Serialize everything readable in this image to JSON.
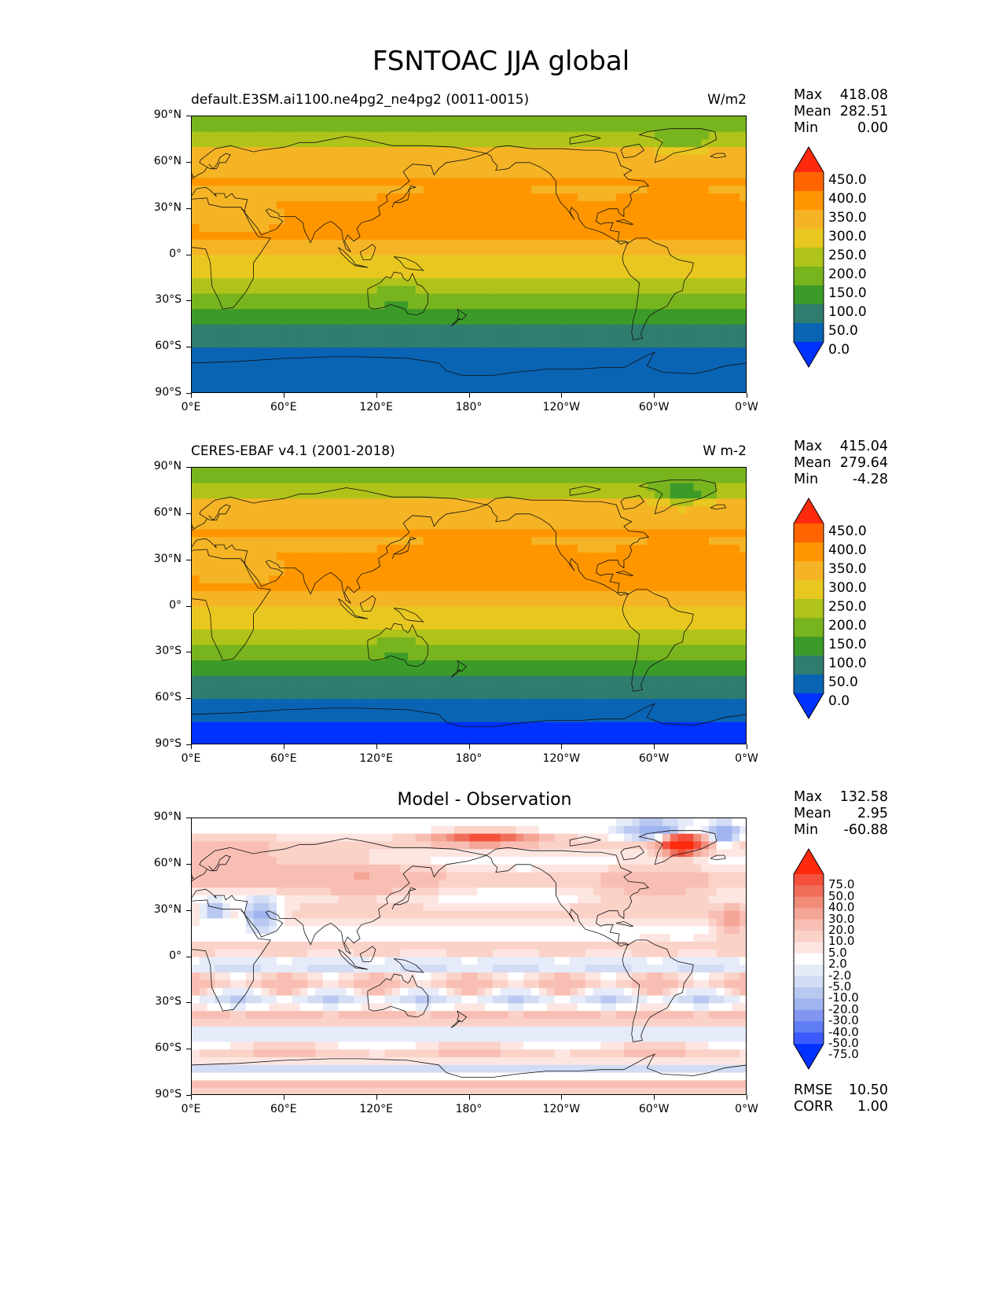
{
  "figure_title": "FSNTOAC JJA global",
  "lat_ticks": [
    "90°N",
    "60°N",
    "30°N",
    "0°",
    "30°S",
    "60°S",
    "90°S"
  ],
  "lon_ticks": [
    "0°E",
    "60°E",
    "120°E",
    "180°",
    "120°W",
    "60°W",
    "0°W"
  ],
  "panels": [
    {
      "id": "test",
      "left_title": "default.E3SM.ai1100.ne4pg2_ne4pg2 (0011-0015)",
      "units": "W/m2",
      "center_title": "",
      "stats": {
        "max_label": "Max",
        "max": "418.08",
        "mean_label": "Mean",
        "mean": "282.51",
        "min_label": "Min",
        "min": "0.00"
      },
      "colorbar_labels": [
        "450.0",
        "400.0",
        "350.0",
        "300.0",
        "250.0",
        "200.0",
        "150.0",
        "100.0",
        "50.0",
        "0.0"
      ],
      "colorbar_colors": [
        "#ff2a0d",
        "#ff6400",
        "#ff9600",
        "#f5b425",
        "#e8c820",
        "#afc31a",
        "#78b41e",
        "#3c9b28",
        "#2f7d6e",
        "#0a64b4",
        "#0032ff"
      ]
    },
    {
      "id": "ref",
      "left_title": "CERES-EBAF v4.1 (2001-2018)",
      "units": "W m-2",
      "center_title": "",
      "stats": {
        "max_label": "Max",
        "max": "415.04",
        "mean_label": "Mean",
        "mean": "279.64",
        "min_label": "Min",
        "min": "-4.28"
      },
      "colorbar_labels": [
        "450.0",
        "400.0",
        "350.0",
        "300.0",
        "250.0",
        "200.0",
        "150.0",
        "100.0",
        "50.0",
        "0.0"
      ],
      "colorbar_colors": [
        "#ff2a0d",
        "#ff6400",
        "#ff9600",
        "#f5b425",
        "#e8c820",
        "#afc31a",
        "#78b41e",
        "#3c9b28",
        "#2f7d6e",
        "#0a64b4",
        "#0032ff"
      ]
    },
    {
      "id": "diff",
      "left_title": "",
      "units": "",
      "center_title": "Model - Observation",
      "stats": {
        "max_label": "Max",
        "max": "132.58",
        "mean_label": "Mean",
        "mean": "2.95",
        "min_label": "Min",
        "min": "-60.88"
      },
      "colorbar_labels": [
        "75.0",
        "50.0",
        "40.0",
        "30.0",
        "20.0",
        "10.0",
        "5.0",
        "2.0",
        "-2.0",
        "-5.0",
        "-10.0",
        "-20.0",
        "-30.0",
        "-40.0",
        "-50.0",
        "-75.0"
      ],
      "colorbar_colors": [
        "#ff2a0d",
        "#f4503c",
        "#f06e5a",
        "#f08c78",
        "#f4a596",
        "#f8beb4",
        "#fbd2c8",
        "#fde6e1",
        "#ffffff",
        "#e6ebfa",
        "#d2dcf5",
        "#b9c8f0",
        "#a0b4f0",
        "#8296f0",
        "#5f7df5",
        "#3c5aff",
        "#0032ff"
      ],
      "footer": {
        "rmse_label": "RMSE",
        "rmse": "10.50",
        "corr_label": "CORR",
        "corr": "1.00"
      }
    }
  ]
}
